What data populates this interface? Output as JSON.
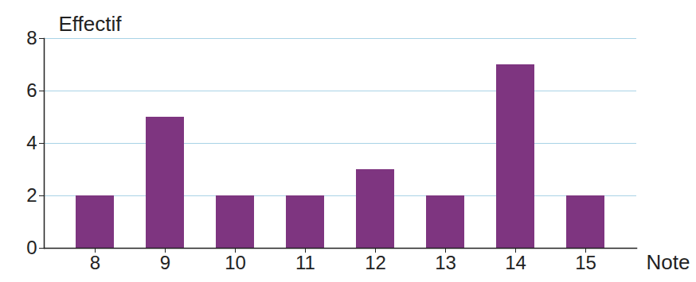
{
  "chart_data": {
    "type": "bar",
    "x_label": "Note",
    "y_label": "Effectif",
    "categories": [
      8,
      9,
      10,
      11,
      12,
      13,
      14,
      15
    ],
    "values": [
      2,
      5,
      2,
      2,
      3,
      2,
      7,
      2
    ],
    "color": "#7e3580",
    "ylim": [
      0,
      8
    ],
    "yticks": [
      0,
      2,
      4,
      6,
      8
    ],
    "grid": true
  }
}
